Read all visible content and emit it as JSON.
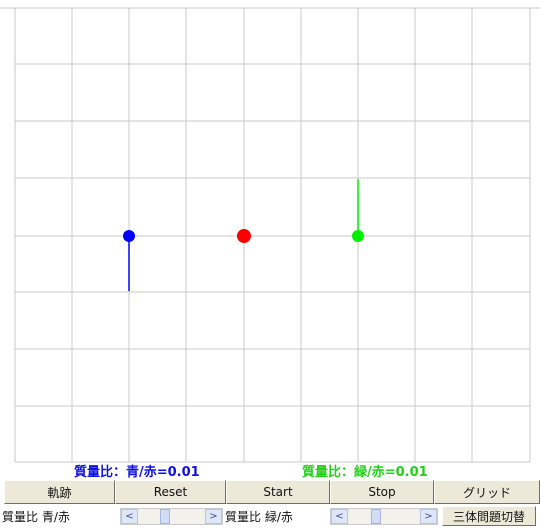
{
  "simulation": {
    "grid_visible": true,
    "bodies": [
      {
        "name": "blue",
        "color": "#0000ff"
      },
      {
        "name": "red",
        "color": "#ff0000"
      },
      {
        "name": "green",
        "color": "#00ee00"
      }
    ],
    "line_color": "#c8c8c8"
  },
  "labels": {
    "ratio_blue_red": "質量比：青/赤=0.01",
    "ratio_green_red": "質量比：緑/赤=0.01"
  },
  "buttons": {
    "trail": "軌跡",
    "reset": "Reset",
    "start": "Start",
    "stop": "Stop",
    "grid": "グリッド",
    "three_body": "三体問題切替"
  },
  "controls": {
    "ratio_blue_label": "質量比 青/赤",
    "ratio_green_label": "質量比 緑/赤",
    "left_arrow": "<",
    "right_arrow": ">",
    "ratio_blue_slider_value": 0.17,
    "ratio_green_slider_value": 0.17
  }
}
